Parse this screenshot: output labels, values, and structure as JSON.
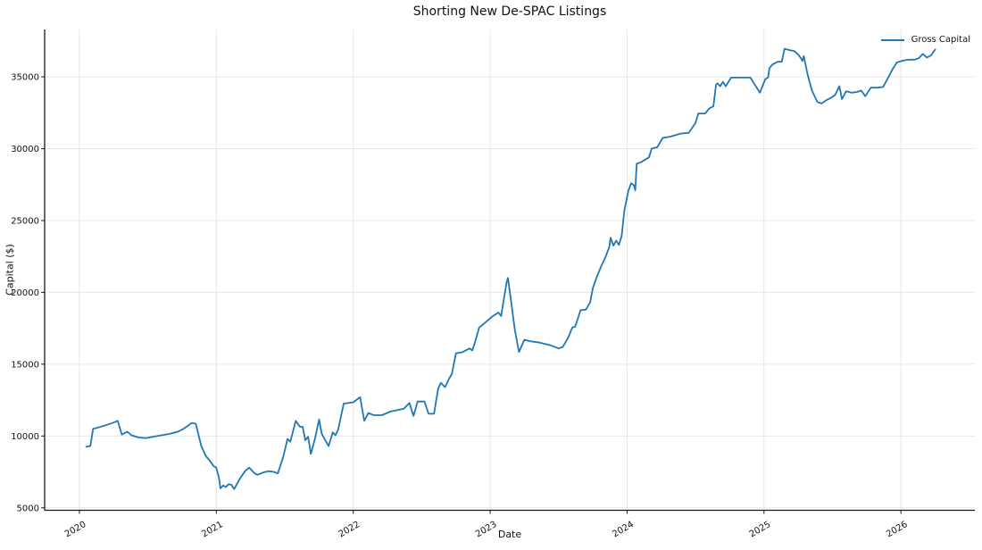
{
  "figure_title": "Shorting New De-SPAC Listings",
  "chart_data": {
    "type": "line",
    "title": "Shorting New De-SPAC Listings",
    "xlabel": "Date",
    "ylabel": "Capital ($)",
    "x_ticks": [
      2020,
      2021,
      2022,
      2023,
      2024,
      2025,
      2026
    ],
    "x_tick_labels": [
      "2020",
      "2021",
      "2022",
      "2023",
      "2024",
      "2025",
      "2026"
    ],
    "y_ticks": [
      5000,
      10000,
      15000,
      20000,
      25000,
      30000,
      35000
    ],
    "y_tick_labels": [
      "5000",
      "10000",
      "15000",
      "20000",
      "25000",
      "30000",
      "35000"
    ],
    "xlim": [
      2019.746,
      2026.54
    ],
    "ylim": [
      4830,
      38300
    ],
    "grid": true,
    "grid_color": "#e7e7e7",
    "axis_color": "#1a1a1a",
    "legend_position": "upper right",
    "x_unit": "decimal_year",
    "series": [
      {
        "name": "Gross Capital",
        "color": "#1f77b4",
        "points": [
          [
            2020.05,
            9250
          ],
          [
            2020.08,
            9300
          ],
          [
            2020.1,
            10500
          ],
          [
            2020.14,
            10600
          ],
          [
            2020.19,
            10750
          ],
          [
            2020.24,
            10900
          ],
          [
            2020.28,
            11050
          ],
          [
            2020.31,
            10100
          ],
          [
            2020.35,
            10300
          ],
          [
            2020.38,
            10050
          ],
          [
            2020.43,
            9900
          ],
          [
            2020.48,
            9850
          ],
          [
            2020.54,
            9950
          ],
          [
            2020.6,
            10050
          ],
          [
            2020.66,
            10150
          ],
          [
            2020.72,
            10300
          ],
          [
            2020.76,
            10500
          ],
          [
            2020.79,
            10700
          ],
          [
            2020.82,
            10900
          ],
          [
            2020.85,
            10850
          ],
          [
            2020.89,
            9300
          ],
          [
            2020.92,
            8650
          ],
          [
            2020.95,
            8300
          ],
          [
            2020.98,
            7900
          ],
          [
            2021.0,
            7800
          ],
          [
            2021.02,
            7050
          ],
          [
            2021.03,
            6350
          ],
          [
            2021.05,
            6550
          ],
          [
            2021.07,
            6450
          ],
          [
            2021.09,
            6650
          ],
          [
            2021.11,
            6600
          ],
          [
            2021.13,
            6300
          ],
          [
            2021.15,
            6650
          ],
          [
            2021.18,
            7150
          ],
          [
            2021.21,
            7550
          ],
          [
            2021.24,
            7800
          ],
          [
            2021.28,
            7400
          ],
          [
            2021.3,
            7300
          ],
          [
            2021.34,
            7450
          ],
          [
            2021.38,
            7550
          ],
          [
            2021.42,
            7500
          ],
          [
            2021.45,
            7400
          ],
          [
            2021.49,
            8600
          ],
          [
            2021.52,
            9800
          ],
          [
            2021.54,
            9600
          ],
          [
            2021.58,
            11050
          ],
          [
            2021.61,
            10650
          ],
          [
            2021.63,
            10650
          ],
          [
            2021.65,
            9700
          ],
          [
            2021.67,
            9950
          ],
          [
            2021.69,
            8750
          ],
          [
            2021.72,
            9800
          ],
          [
            2021.75,
            11150
          ],
          [
            2021.77,
            10150
          ],
          [
            2021.79,
            9800
          ],
          [
            2021.82,
            9300
          ],
          [
            2021.85,
            10250
          ],
          [
            2021.87,
            10050
          ],
          [
            2021.89,
            10450
          ],
          [
            2021.93,
            12250
          ],
          [
            2022.0,
            12350
          ],
          [
            2022.05,
            12700
          ],
          [
            2022.08,
            11050
          ],
          [
            2022.11,
            11600
          ],
          [
            2022.15,
            11450
          ],
          [
            2022.21,
            11450
          ],
          [
            2022.27,
            11700
          ],
          [
            2022.32,
            11800
          ],
          [
            2022.37,
            11900
          ],
          [
            2022.41,
            12300
          ],
          [
            2022.44,
            11400
          ],
          [
            2022.47,
            12400
          ],
          [
            2022.52,
            12400
          ],
          [
            2022.55,
            11550
          ],
          [
            2022.59,
            11550
          ],
          [
            2022.62,
            13300
          ],
          [
            2022.64,
            13700
          ],
          [
            2022.67,
            13400
          ],
          [
            2022.7,
            14000
          ],
          [
            2022.72,
            14300
          ],
          [
            2022.75,
            15750
          ],
          [
            2022.8,
            15850
          ],
          [
            2022.85,
            16100
          ],
          [
            2022.87,
            15950
          ],
          [
            2022.89,
            16550
          ],
          [
            2022.92,
            17550
          ],
          [
            2022.97,
            17950
          ],
          [
            2023.02,
            18350
          ],
          [
            2023.06,
            18600
          ],
          [
            2023.08,
            18350
          ],
          [
            2023.12,
            20700
          ],
          [
            2023.13,
            21000
          ],
          [
            2023.18,
            17400
          ],
          [
            2023.21,
            15850
          ],
          [
            2023.25,
            16700
          ],
          [
            2023.29,
            16600
          ],
          [
            2023.36,
            16500
          ],
          [
            2023.43,
            16350
          ],
          [
            2023.5,
            16100
          ],
          [
            2023.53,
            16200
          ],
          [
            2023.57,
            16850
          ],
          [
            2023.6,
            17550
          ],
          [
            2023.62,
            17600
          ],
          [
            2023.66,
            18750
          ],
          [
            2023.7,
            18800
          ],
          [
            2023.73,
            19300
          ],
          [
            2023.75,
            20300
          ],
          [
            2023.78,
            21100
          ],
          [
            2023.81,
            21800
          ],
          [
            2023.84,
            22400
          ],
          [
            2023.87,
            23150
          ],
          [
            2023.88,
            23800
          ],
          [
            2023.9,
            23250
          ],
          [
            2023.92,
            23600
          ],
          [
            2023.94,
            23300
          ],
          [
            2023.96,
            23900
          ],
          [
            2023.98,
            25700
          ],
          [
            2024.01,
            27100
          ],
          [
            2024.03,
            27600
          ],
          [
            2024.05,
            27450
          ],
          [
            2024.06,
            27100
          ],
          [
            2024.07,
            28950
          ],
          [
            2024.1,
            29050
          ],
          [
            2024.16,
            29400
          ],
          [
            2024.18,
            30000
          ],
          [
            2024.22,
            30100
          ],
          [
            2024.26,
            30750
          ],
          [
            2024.32,
            30850
          ],
          [
            2024.39,
            31050
          ],
          [
            2024.45,
            31100
          ],
          [
            2024.5,
            31800
          ],
          [
            2024.52,
            32450
          ],
          [
            2024.57,
            32450
          ],
          [
            2024.6,
            32800
          ],
          [
            2024.63,
            32950
          ],
          [
            2024.65,
            34450
          ],
          [
            2024.66,
            34550
          ],
          [
            2024.68,
            34350
          ],
          [
            2024.7,
            34650
          ],
          [
            2024.72,
            34350
          ],
          [
            2024.76,
            34950
          ],
          [
            2024.83,
            34950
          ],
          [
            2024.9,
            34950
          ],
          [
            2024.92,
            34650
          ],
          [
            2024.96,
            34050
          ],
          [
            2024.97,
            33900
          ],
          [
            2025.01,
            34850
          ],
          [
            2025.03,
            34950
          ],
          [
            2025.04,
            35600
          ],
          [
            2025.06,
            35850
          ],
          [
            2025.1,
            36050
          ],
          [
            2025.13,
            36050
          ],
          [
            2025.15,
            36950
          ],
          [
            2025.19,
            36850
          ],
          [
            2025.22,
            36800
          ],
          [
            2025.25,
            36550
          ],
          [
            2025.27,
            36300
          ],
          [
            2025.28,
            36100
          ],
          [
            2025.29,
            36450
          ],
          [
            2025.32,
            35100
          ],
          [
            2025.35,
            34050
          ],
          [
            2025.39,
            33250
          ],
          [
            2025.42,
            33150
          ],
          [
            2025.46,
            33400
          ],
          [
            2025.49,
            33550
          ],
          [
            2025.52,
            33750
          ],
          [
            2025.55,
            34350
          ],
          [
            2025.57,
            33450
          ],
          [
            2025.6,
            34000
          ],
          [
            2025.64,
            33900
          ],
          [
            2025.68,
            33950
          ],
          [
            2025.71,
            34050
          ],
          [
            2025.74,
            33650
          ],
          [
            2025.78,
            34250
          ],
          [
            2025.83,
            34250
          ],
          [
            2025.87,
            34300
          ],
          [
            2025.91,
            35000
          ],
          [
            2025.94,
            35550
          ],
          [
            2025.97,
            36000
          ],
          [
            2026.02,
            36150
          ],
          [
            2026.06,
            36200
          ],
          [
            2026.1,
            36200
          ],
          [
            2026.13,
            36300
          ],
          [
            2026.16,
            36600
          ],
          [
            2026.19,
            36350
          ],
          [
            2026.22,
            36500
          ],
          [
            2026.25,
            36900
          ]
        ]
      }
    ]
  }
}
